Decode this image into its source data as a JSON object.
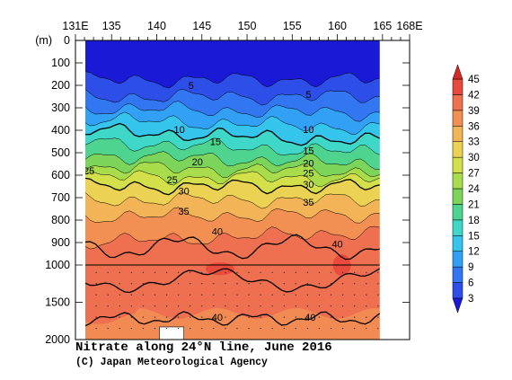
{
  "chart_data": {
    "type": "heatmap",
    "title": "Nitrate along 24°N line, June 2016",
    "credit": "(C) Japan Meteorological Agency",
    "xlabel": "",
    "ylabel": "(m)",
    "x_ticks": [
      "131E",
      "135",
      "140",
      "145",
      "150",
      "155",
      "160",
      "165",
      "168E"
    ],
    "x_tick_values": [
      131,
      135,
      140,
      145,
      150,
      155,
      160,
      165,
      168
    ],
    "xlim": [
      131,
      168
    ],
    "data_extent_x": [
      131,
      164.7
    ],
    "y_ticks_upper": [
      "0",
      "100",
      "200",
      "300",
      "400",
      "500",
      "600",
      "700",
      "800",
      "900",
      "1000"
    ],
    "y_ticks_lower": [
      "1500",
      "2000"
    ],
    "y_axis_break": 1000,
    "ylim": [
      0,
      2000
    ],
    "colorbar": {
      "levels": [
        3,
        6,
        9,
        12,
        15,
        18,
        21,
        24,
        27,
        30,
        33,
        36,
        39,
        42,
        45
      ],
      "labels": [
        "3",
        "6",
        "9",
        "12",
        "15",
        "18",
        "21",
        "24",
        "27",
        "30",
        "33",
        "36",
        "39",
        "42",
        "45"
      ],
      "colors": [
        "#1a1ad6",
        "#2e4ee8",
        "#3376f2",
        "#31a0f5",
        "#35c4ec",
        "#3fd8c8",
        "#4fd48f",
        "#7dd45a",
        "#a8dc4a",
        "#d4e04a",
        "#ecd252",
        "#f2b457",
        "#f28f53",
        "#ef7050",
        "#e84b3c",
        "#d42a28"
      ],
      "extend": "both"
    },
    "contour_labels": [
      "5",
      "5",
      "10",
      "10",
      "15",
      "15",
      "20",
      "20",
      "25",
      "25",
      "25",
      "30",
      "30",
      "35",
      "35",
      "40",
      "40",
      "40",
      "40"
    ],
    "depth_profile_west": [
      {
        "depth": 0,
        "value": 1
      },
      {
        "depth": 150,
        "value": 2
      },
      {
        "depth": 250,
        "value": 6
      },
      {
        "depth": 350,
        "value": 12
      },
      {
        "depth": 450,
        "value": 18
      },
      {
        "depth": 550,
        "value": 23
      },
      {
        "depth": 650,
        "value": 30
      },
      {
        "depth": 750,
        "value": 35
      },
      {
        "depth": 850,
        "value": 38
      },
      {
        "depth": 950,
        "value": 40
      },
      {
        "depth": 1500,
        "value": 40
      },
      {
        "depth": 2000,
        "value": 38
      }
    ],
    "depth_profile_east": [
      {
        "depth": 0,
        "value": 1
      },
      {
        "depth": 150,
        "value": 2
      },
      {
        "depth": 250,
        "value": 6
      },
      {
        "depth": 350,
        "value": 10
      },
      {
        "depth": 450,
        "value": 15
      },
      {
        "depth": 550,
        "value": 21
      },
      {
        "depth": 650,
        "value": 30
      },
      {
        "depth": 750,
        "value": 35
      },
      {
        "depth": 850,
        "value": 39
      },
      {
        "depth": 950,
        "value": 41
      },
      {
        "depth": 1500,
        "value": 41
      },
      {
        "depth": 2000,
        "value": 40
      }
    ],
    "legend_position": "right",
    "grid": false
  }
}
